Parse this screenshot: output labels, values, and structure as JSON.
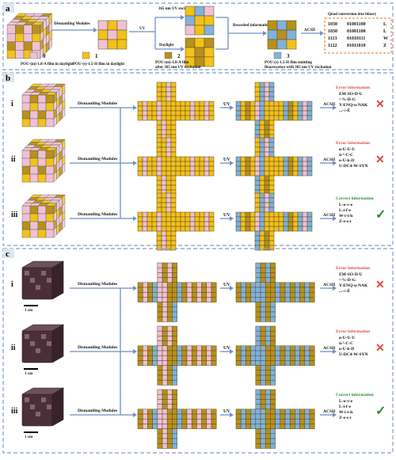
{
  "colors": {
    "pink": "#efc1d3",
    "yellow": "#f3c11b",
    "olive": "#b7901d",
    "blue": "#7fb2dc",
    "red": "#e04a3c",
    "green": "#2e8b2e",
    "border": "#7f9fc6"
  },
  "panel_a": {
    "label": "a",
    "dismantle": "Dismantling Modules",
    "uv_top": "365 nm UV excitation",
    "uv": "UV",
    "daylight": "Daylight",
    "recorded": "Recorded information",
    "acsii": "ACSII",
    "quad_title": "Quad conversion into binary",
    "quad_rows": [
      {
        "quad": "1030",
        "bin": "01001100",
        "chr": "L"
      },
      {
        "quad": "1030",
        "bin": "01001100",
        "chr": "L"
      },
      {
        "quad": "1113",
        "bin": "01010111",
        "chr": "W"
      },
      {
        "quad": "1122",
        "bin": "01011010",
        "chr": "Z"
      }
    ],
    "legend": [
      {
        "num": "0",
        "text": "POU-(m)-1.8-A film in daylight",
        "color": "pink"
      },
      {
        "num": "1",
        "text": "POU-(s)-1.5-H film in daylight",
        "color": "yellow"
      },
      {
        "num": "2",
        "text": "POU-(m)-1.8-A film after 365 nm UV excitation",
        "color": "olive"
      },
      {
        "num": "3",
        "text": "POU-(s)-1.5-H film emitting fluorescence with 365 nm UV excitation",
        "color": "blue"
      }
    ]
  },
  "panel_b": {
    "label": "b",
    "rows": [
      {
        "roman": "i",
        "status": "Error information",
        "lines": [
          "EM-SO-D-U",
          "²-%-D-G",
          "Y-ENQ-u-NAK",
          "...-¤-É"
        ],
        "correct": false
      },
      {
        "roman": "ii",
        "status": "Error information",
        "lines": [
          "ø-U-U-U",
          "ú-¹-C-C",
          "o-U-k-D",
          "U-DC4-W-SYN"
        ],
        "correct": false
      },
      {
        "roman": "iii",
        "status": "Correct information",
        "lines": [
          "L-o-v-e",
          "L-i-f-e",
          "W-i-t-h",
          "Z-e-s-t"
        ],
        "correct": true
      }
    ],
    "dismantle": "Dismantling Modules",
    "uv": "UV",
    "acsii": "ACSII"
  },
  "panel_c": {
    "label": "c",
    "rows": [
      {
        "roman": "i",
        "status": "Error information",
        "lines": [
          "EM-SO-D-U",
          "²-%-D-G",
          "Y-ENQ-u-NAK",
          "...-¤-É"
        ],
        "correct": false
      },
      {
        "roman": "ii",
        "status": "Error information",
        "lines": [
          "ø-U-U-U",
          "ú-¹-C-C",
          "o-U-k-D",
          "U-DC4-W-SYN"
        ],
        "correct": false
      },
      {
        "roman": "iii",
        "status": "Correct information",
        "lines": [
          "L-o-v-e",
          "L-i-f-e",
          "W-i-t-h",
          "Z-e-s-t"
        ],
        "correct": true
      }
    ],
    "dismantle": "Dismantling Modules",
    "uv": "UV",
    "acsii": "ACSII",
    "scale": "1 cm"
  },
  "cross_icon": "✕",
  "check_icon": "✓"
}
